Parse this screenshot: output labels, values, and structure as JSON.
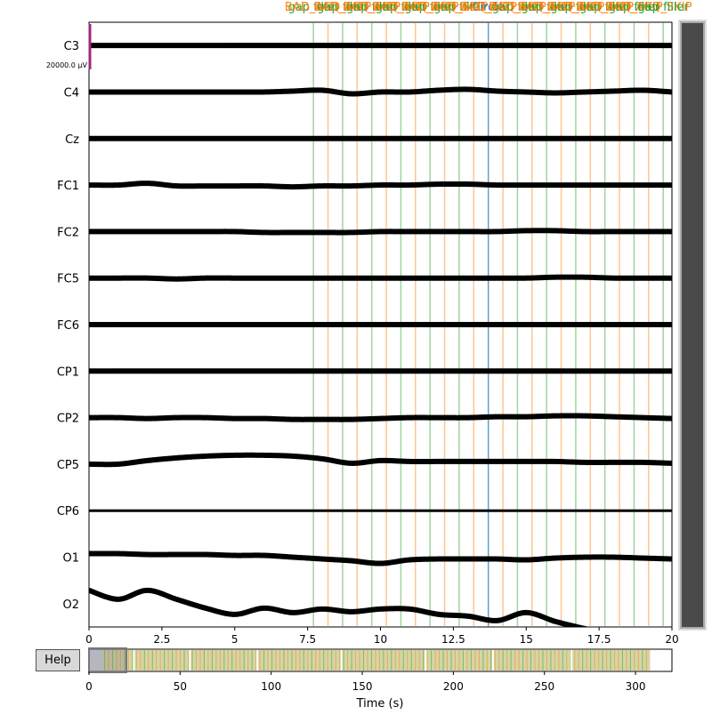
{
  "help_label": "Help",
  "scale_label": "20000.0 µV",
  "colors": {
    "trace": "#000000",
    "scale_bar": "#a1257d",
    "annot_green": "#2ca02c",
    "annot_orange": "#ff7f0e",
    "annot_blue": "#1f77b4",
    "scrollbar_fill": "#4a4a4a",
    "overview_fill": "#d5d5a5"
  },
  "chart_data": {
    "type": "line",
    "channels": [
      "C3",
      "C4",
      "Cz",
      "FC1",
      "FC2",
      "FC5",
      "FC6",
      "CP1",
      "CP2",
      "CP5",
      "CP6",
      "O1",
      "O2"
    ],
    "xlim": [
      0,
      20
    ],
    "xticks": [
      "0",
      "2.5",
      "5",
      "7.5",
      "10",
      "12.5",
      "15",
      "17.5",
      "20"
    ],
    "xlabel": "Time (s)",
    "overview": {
      "xlim": [
        0,
        320
      ],
      "xticks": [
        "0",
        "50",
        "100",
        "150",
        "200",
        "250",
        "300"
      ],
      "view_window": [
        0,
        20
      ],
      "record_end": 308
    },
    "annotation_labels": {
      "green": "gap filler",
      "orange": "BAD_ACQ_SKIP",
      "blue": "Circle"
    },
    "annotations": [
      {
        "t": 7.7,
        "kind": "green"
      },
      {
        "t": 8.2,
        "kind": "orange"
      },
      {
        "t": 8.7,
        "kind": "green"
      },
      {
        "t": 9.2,
        "kind": "orange"
      },
      {
        "t": 9.7,
        "kind": "green"
      },
      {
        "t": 10.2,
        "kind": "orange"
      },
      {
        "t": 10.7,
        "kind": "green"
      },
      {
        "t": 11.2,
        "kind": "orange"
      },
      {
        "t": 11.7,
        "kind": "green"
      },
      {
        "t": 12.2,
        "kind": "orange"
      },
      {
        "t": 12.7,
        "kind": "green"
      },
      {
        "t": 13.2,
        "kind": "orange"
      },
      {
        "t": 13.7,
        "kind": "blue"
      },
      {
        "t": 14.2,
        "kind": "orange"
      },
      {
        "t": 14.7,
        "kind": "green"
      },
      {
        "t": 15.2,
        "kind": "orange"
      },
      {
        "t": 15.7,
        "kind": "green"
      },
      {
        "t": 16.2,
        "kind": "orange"
      },
      {
        "t": 16.7,
        "kind": "green"
      },
      {
        "t": 17.2,
        "kind": "orange"
      },
      {
        "t": 17.7,
        "kind": "green"
      },
      {
        "t": 18.2,
        "kind": "orange"
      },
      {
        "t": 18.7,
        "kind": "green"
      },
      {
        "t": 19.2,
        "kind": "orange"
      },
      {
        "t": 19.7,
        "kind": "green"
      }
    ],
    "traces": {
      "t": [
        0,
        1,
        2,
        3,
        4,
        5,
        6,
        7,
        8,
        9,
        10,
        11,
        12,
        13,
        14,
        15,
        16,
        17,
        18,
        19,
        20
      ],
      "offsets_uv": [
        [
          0,
          0,
          0,
          0,
          0,
          0,
          0,
          0,
          0,
          0,
          0,
          0,
          0,
          0,
          0,
          0,
          0,
          0,
          0,
          0,
          0
        ],
        [
          0,
          0,
          0,
          0,
          0,
          0,
          0,
          1,
          2,
          -2,
          0,
          0,
          2,
          3,
          1,
          0,
          -1,
          0,
          1,
          2,
          0
        ],
        [
          0,
          0,
          0,
          0,
          0,
          0,
          0,
          0,
          0,
          0,
          0,
          0,
          0,
          0,
          0,
          0,
          0,
          0,
          0,
          0,
          0
        ],
        [
          0,
          0,
          2,
          -1,
          -1,
          -1,
          -1,
          -2,
          -1,
          -1,
          0,
          0,
          1,
          1,
          0,
          0,
          0,
          0,
          0,
          0,
          0
        ],
        [
          0,
          0,
          0,
          0,
          0,
          0,
          -1,
          -1,
          -1,
          -1,
          0,
          0,
          0,
          0,
          0,
          1,
          1,
          0,
          0,
          0,
          0
        ],
        [
          0,
          0,
          0,
          -1,
          0,
          0,
          0,
          0,
          0,
          0,
          0,
          0,
          0,
          0,
          0,
          0,
          1,
          1,
          0,
          0,
          0
        ],
        [
          0,
          0,
          0,
          0,
          0,
          0,
          0,
          0,
          0,
          0,
          0,
          0,
          0,
          0,
          0,
          0,
          0,
          0,
          0,
          0,
          0
        ],
        [
          0,
          0,
          0,
          0,
          0,
          0,
          0,
          0,
          0,
          0,
          0,
          0,
          0,
          0,
          0,
          0,
          0,
          0,
          0,
          0,
          0
        ],
        [
          0,
          0,
          -1,
          0,
          0,
          -1,
          -1,
          -2,
          -2,
          -2,
          -1,
          0,
          0,
          0,
          1,
          1,
          2,
          2,
          1,
          0,
          -1
        ],
        [
          0,
          0,
          4,
          7,
          9,
          10,
          10,
          9,
          6,
          1,
          4,
          3,
          3,
          3,
          3,
          3,
          3,
          2,
          2,
          2,
          1
        ],
        [
          0,
          0,
          0,
          0,
          0,
          0,
          0,
          0,
          0,
          0,
          0,
          0,
          0,
          0,
          0,
          0,
          0,
          0,
          0,
          0,
          0
        ],
        [
          4,
          4,
          3,
          3,
          3,
          2,
          2,
          0,
          -2,
          -4,
          -7,
          -3,
          -2,
          -2,
          -2,
          -3,
          -1,
          0,
          0,
          -1,
          -2
        ],
        [
          15,
          5,
          15,
          5,
          -5,
          -12,
          -5,
          -10,
          -6,
          -9,
          -6,
          -6,
          -12,
          -14,
          -19,
          -10,
          -20,
          -28,
          -35,
          -45,
          -55
        ]
      ]
    }
  }
}
